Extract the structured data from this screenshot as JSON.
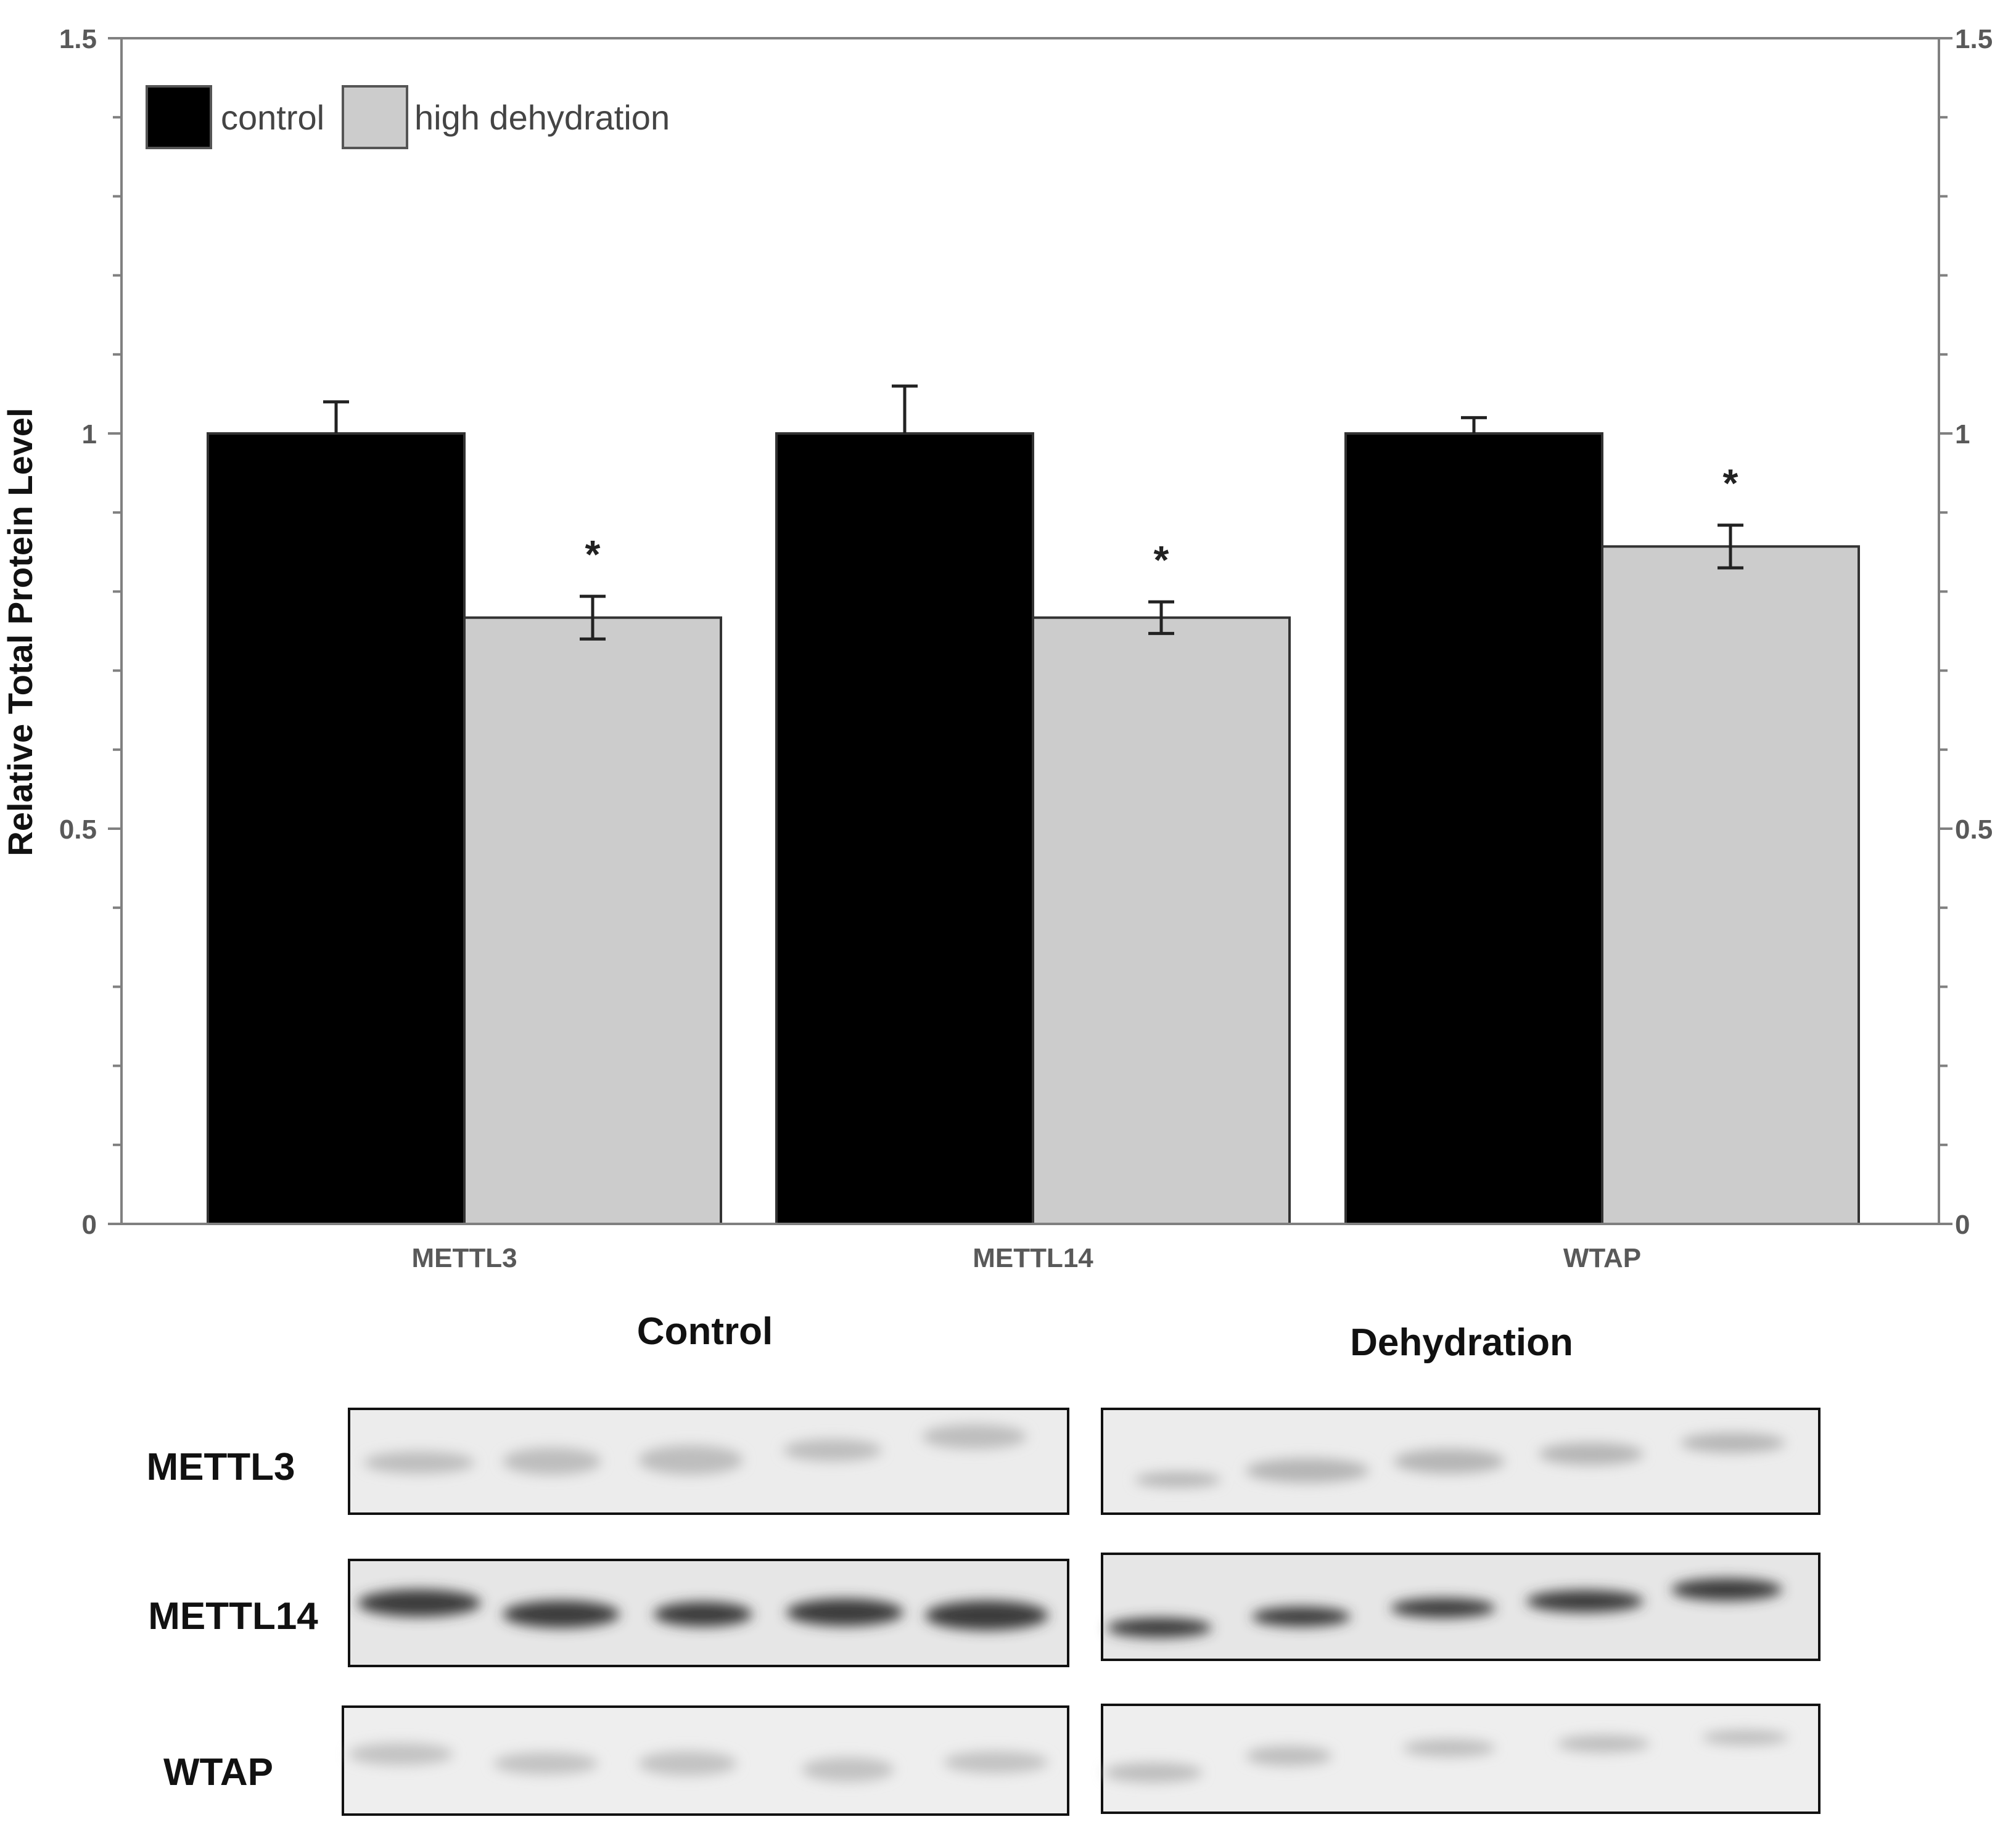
{
  "chart_data": {
    "type": "bar",
    "categories": [
      "METTL3",
      "METTL14",
      "WTAP"
    ],
    "series": [
      {
        "name": "control",
        "color": "#000000",
        "values": [
          1.0,
          1.0,
          1.0
        ],
        "errors": [
          0.04,
          0.06,
          0.02
        ]
      },
      {
        "name": "high dehydration",
        "color": "#cccccc",
        "values": [
          0.767,
          0.767,
          0.857
        ],
        "errors": [
          0.027,
          0.02,
          0.027
        ]
      }
    ],
    "significance": [
      "*",
      "*",
      "*"
    ],
    "ylabel": "Relative Total Protein Level",
    "ylim": [
      0,
      1.5
    ],
    "yticks": [
      0,
      0.5,
      1,
      1.5
    ],
    "ytick_labels": [
      "0",
      "0.5",
      "1",
      "1.5"
    ],
    "grid": false,
    "legend_position": "top-left"
  },
  "western_blot": {
    "group_labels": [
      "Control",
      "Dehydration"
    ],
    "row_labels": [
      "METTL3",
      "METTL14",
      "WTAP"
    ]
  }
}
